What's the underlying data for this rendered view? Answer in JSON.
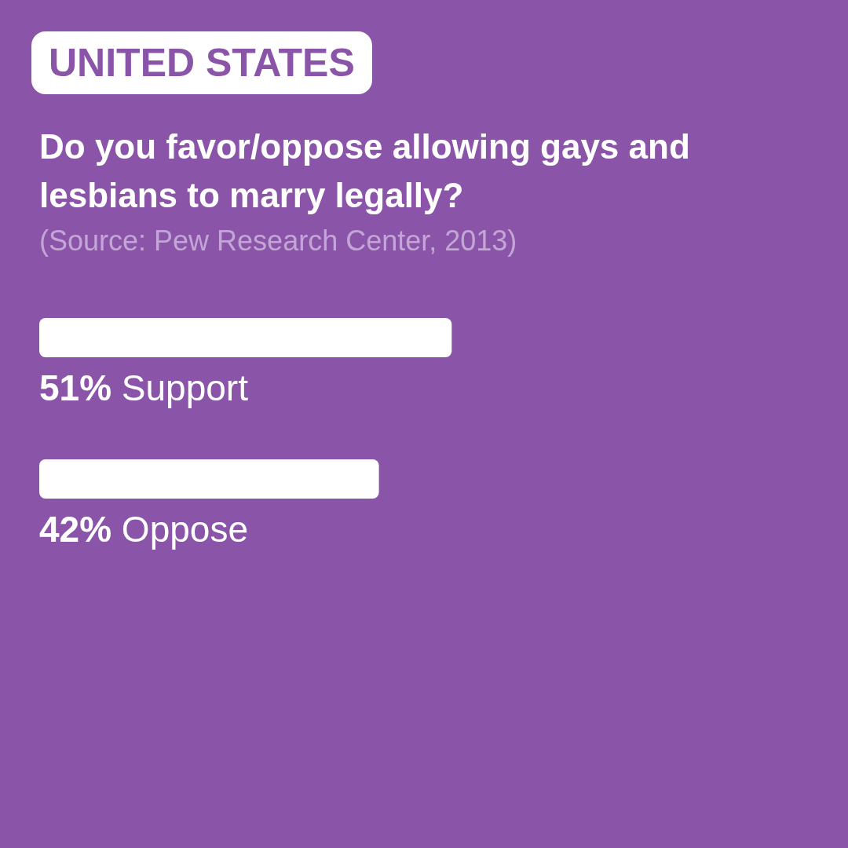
{
  "chart_data": {
    "type": "bar",
    "orientation": "horizontal",
    "title": "UNITED STATES",
    "subtitle": "Do you favor/oppose allowing gays and lesbians to marry legally?",
    "annotations": [
      "(Source: Pew Research Center, 2013)"
    ],
    "categories": [
      "Support",
      "Oppose"
    ],
    "values": [
      51,
      42
    ],
    "color": "#ffffff",
    "xlim": [
      0,
      100
    ],
    "data_labels": true,
    "value_labels": [
      "51%",
      "42%"
    ],
    "tick_labels": false,
    "grid": false,
    "legend": false
  }
}
